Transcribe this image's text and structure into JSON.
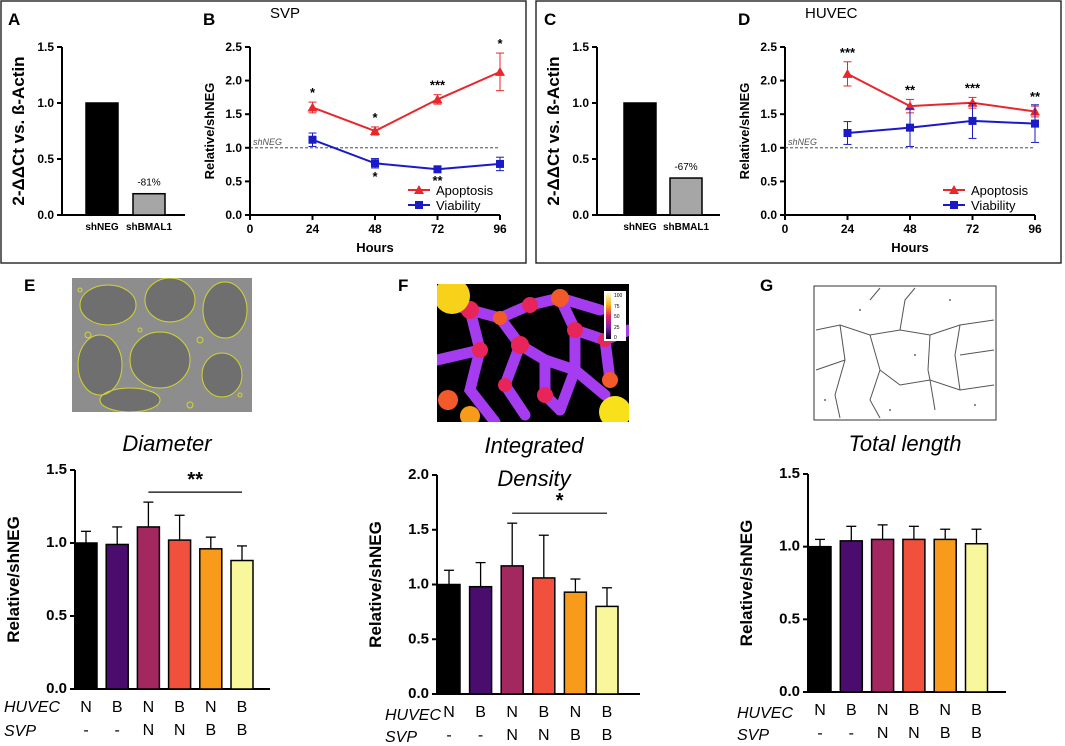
{
  "panels": {
    "A": "A",
    "B": "B",
    "C": "C",
    "D": "D",
    "E": "E",
    "F": "F",
    "G": "G"
  },
  "chart_data": [
    {
      "id": "A",
      "type": "bar",
      "categories": [
        "shNEG",
        "shBMAL1"
      ],
      "values": [
        1.0,
        0.19
      ],
      "colors": [
        "#000000",
        "#a6a6a6"
      ],
      "ylabel": "2-ΔΔCt vs. ß-Actin",
      "ylim": [
        0,
        1.5
      ],
      "yticks": [
        "0.0",
        "0.5",
        "1.0",
        "1.5"
      ],
      "ytick_values": [
        0,
        0.5,
        1,
        1.5
      ],
      "annotation": "-81%"
    },
    {
      "id": "B",
      "type": "line",
      "title": "SVP",
      "x": [
        24,
        48,
        72,
        96
      ],
      "xticks": [
        "0",
        "24",
        "48",
        "72",
        "96"
      ],
      "xtick_values": [
        0,
        24,
        48,
        72,
        96
      ],
      "xlabel": "Hours",
      "ylabel": "Relative/shNEG",
      "ylim": [
        0,
        2.5
      ],
      "yticks": [
        "0.0",
        "0.5",
        "1.0",
        "1.5",
        "2.0",
        "2.5"
      ],
      "ytick_values": [
        0,
        0.5,
        1,
        1.5,
        2,
        2.5
      ],
      "reference": {
        "value": 1.0,
        "label": "shNEG"
      },
      "series": [
        {
          "name": "Apoptosis",
          "color": "#e8262b",
          "marker": "triangle",
          "values": [
            1.6,
            1.25,
            1.72,
            2.13
          ],
          "errors": [
            0.08,
            0.06,
            0.07,
            0.28
          ],
          "stars": [
            "*",
            "*",
            "***",
            "*"
          ]
        },
        {
          "name": "Viability",
          "color": "#1a1ac9",
          "marker": "square",
          "values": [
            1.12,
            0.77,
            0.68,
            0.76
          ],
          "errors": [
            0.1,
            0.07,
            0.04,
            0.1
          ],
          "stars": [
            "",
            "*",
            "**",
            ""
          ]
        }
      ]
    },
    {
      "id": "C",
      "type": "bar",
      "categories": [
        "shNEG",
        "shBMAL1"
      ],
      "values": [
        1.0,
        0.33
      ],
      "colors": [
        "#000000",
        "#a6a6a6"
      ],
      "ylabel": "2-ΔΔCt vs. ß-Actin",
      "ylim": [
        0,
        1.5
      ],
      "yticks": [
        "0.0",
        "0.5",
        "1.0",
        "1.5"
      ],
      "ytick_values": [
        0,
        0.5,
        1,
        1.5
      ],
      "annotation": "-67%"
    },
    {
      "id": "D",
      "type": "line",
      "title": "HUVEC",
      "x": [
        24,
        48,
        72,
        96
      ],
      "xticks": [
        "0",
        "24",
        "48",
        "72",
        "96"
      ],
      "xtick_values": [
        0,
        24,
        48,
        72,
        96
      ],
      "xlabel": "Hours",
      "ylabel": "Relative/shNEG",
      "ylim": [
        0,
        2.5
      ],
      "yticks": [
        "0.0",
        "0.5",
        "1.0",
        "1.5",
        "2.0",
        "2.5"
      ],
      "ytick_values": [
        0,
        0.5,
        1,
        1.5,
        2,
        2.5
      ],
      "reference": {
        "value": 1.0,
        "label": "shNEG"
      },
      "series": [
        {
          "name": "Apoptosis",
          "color": "#e8262b",
          "marker": "triangle",
          "values": [
            2.1,
            1.62,
            1.67,
            1.54
          ],
          "errors": [
            0.18,
            0.1,
            0.08,
            0.08
          ],
          "stars": [
            "***",
            "**",
            "***",
            "**"
          ]
        },
        {
          "name": "Viability",
          "color": "#1a1ac9",
          "marker": "square",
          "values": [
            1.22,
            1.3,
            1.4,
            1.36
          ],
          "errors": [
            0.17,
            0.28,
            0.26,
            0.28
          ],
          "stars": [
            "",
            "",
            "",
            ""
          ]
        }
      ]
    },
    {
      "id": "E",
      "type": "bar",
      "title": "Diameter",
      "categories": [
        "N/-",
        "B/-",
        "N/N",
        "B/N",
        "N/B",
        "B/B"
      ],
      "values": [
        1.0,
        0.99,
        1.11,
        1.02,
        0.96,
        0.88
      ],
      "errors": [
        0.08,
        0.12,
        0.17,
        0.17,
        0.08,
        0.1
      ],
      "ylabel": "Relative/shNEG",
      "ylim": [
        0,
        1.5
      ],
      "yticks": [
        "0.0",
        "0.5",
        "1.0",
        "1.5"
      ],
      "ytick_values": [
        0,
        0.5,
        1,
        1.5
      ],
      "significance": {
        "from": 2,
        "to": 5,
        "label": "**"
      }
    },
    {
      "id": "F",
      "type": "bar",
      "title_lines": [
        "Integrated",
        "Density"
      ],
      "categories": [
        "N/-",
        "B/-",
        "N/N",
        "B/N",
        "N/B",
        "B/B"
      ],
      "values": [
        1.0,
        0.98,
        1.17,
        1.06,
        0.93,
        0.8
      ],
      "errors": [
        0.13,
        0.22,
        0.39,
        0.39,
        0.12,
        0.17
      ],
      "ylabel": "Relative/shNEG",
      "ylim": [
        0,
        2.0
      ],
      "yticks": [
        "0.0",
        "0.5",
        "1.0",
        "1.5",
        "2.0"
      ],
      "ytick_values": [
        0,
        0.5,
        1,
        1.5,
        2
      ],
      "significance": {
        "from": 2,
        "to": 5,
        "label": "*"
      }
    },
    {
      "id": "G",
      "type": "bar",
      "title": "Total length",
      "categories": [
        "N/-",
        "B/-",
        "N/N",
        "B/N",
        "N/B",
        "B/B"
      ],
      "values": [
        1.0,
        1.04,
        1.05,
        1.05,
        1.05,
        1.02
      ],
      "errors": [
        0.05,
        0.1,
        0.1,
        0.09,
        0.07,
        0.1
      ],
      "ylabel": "Relative/shNEG",
      "ylim": [
        0,
        1.5
      ],
      "yticks": [
        "0.0",
        "0.5",
        "1.0",
        "1.5"
      ],
      "ytick_values": [
        0,
        0.5,
        1,
        1.5
      ]
    }
  ],
  "bar_colors": [
    "#000000",
    "#4a0d6e",
    "#a3285f",
    "#f0503c",
    "#f99b1a",
    "#f8f79c"
  ],
  "table": {
    "huvec_label": "HUVEC",
    "svp_label": "SVP",
    "huvec": [
      "N",
      "B",
      "N",
      "B",
      "N",
      "B"
    ],
    "svp": [
      "-",
      "-",
      "N",
      "N",
      "B",
      "B"
    ]
  },
  "colorbar": {
    "labels": [
      "100",
      "75",
      "50",
      "25",
      "0"
    ]
  }
}
